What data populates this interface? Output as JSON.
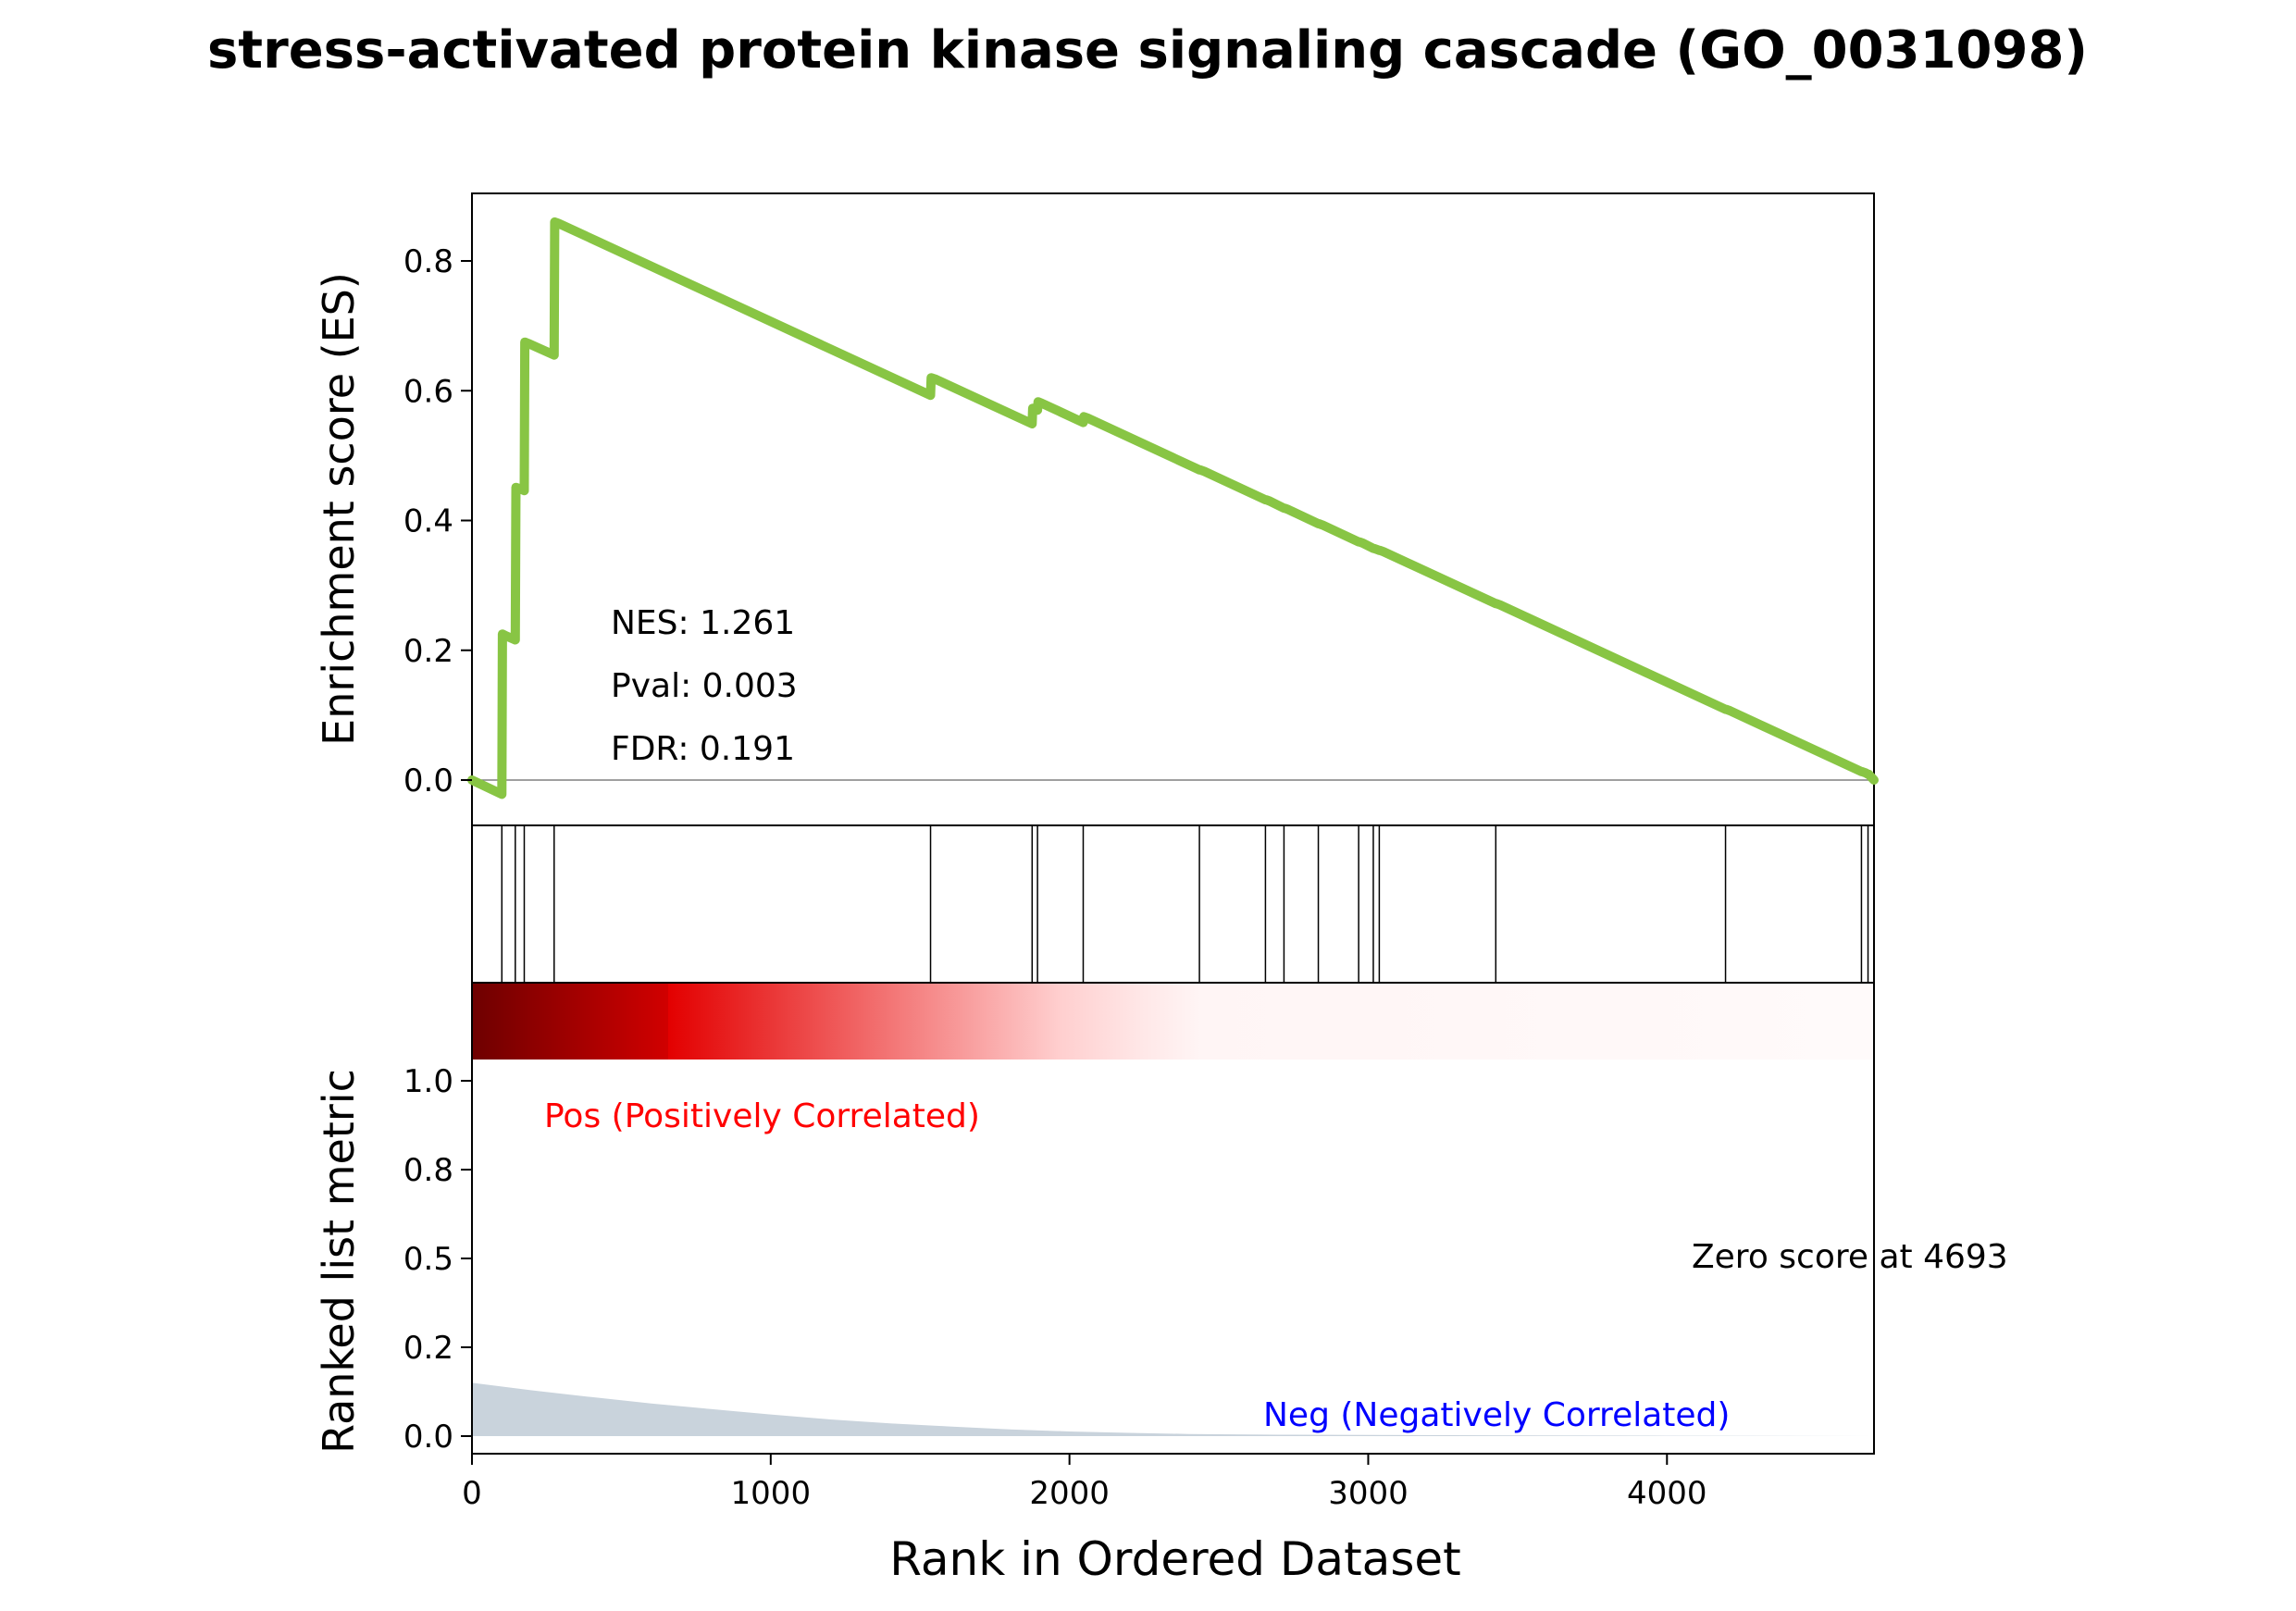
{
  "chart_data": {
    "type": "line",
    "title": "stress-activated protein kinase signaling cascade (GO_0031098)",
    "xlabel": "Rank in Ordered Dataset",
    "colors": {
      "es_line": "#88c544",
      "pos_label": "#ff0000",
      "neg_label": "#0000ff",
      "metric_fill": "#c9d3dc",
      "zero_line": "#808080"
    },
    "es_panel": {
      "ylabel": "Enrichment score (ES)",
      "xlim": [
        0,
        4693
      ],
      "ylim": [
        -0.07,
        0.9
      ],
      "yticks": [
        "0.0",
        "0.2",
        "0.4",
        "0.6",
        "0.8"
      ],
      "ytick_values": [
        0.0,
        0.2,
        0.4,
        0.6,
        0.8
      ],
      "stats": [
        "NES: 1.261",
        "Pval: 0.003",
        "FDR: 0.191"
      ],
      "series": [
        {
          "x": [
            0,
            100,
            102,
            115,
            145,
            147,
            160,
            175,
            177,
            188,
            275,
            277,
            289,
            1535,
            1537,
            1550,
            1875,
            1877,
            1890,
            1893,
            1895,
            1906,
            2046,
            2048,
            2060,
            2435,
            2437,
            2450,
            2656,
            2658,
            2670,
            2718,
            2720,
            2732,
            2833,
            2835,
            2847,
            2968,
            2970,
            2982,
            3017,
            3019,
            3031,
            3037,
            3039,
            3051,
            3427,
            3429,
            3441,
            4196,
            4198,
            4210,
            4651,
            4653,
            4665,
            4673,
            4675,
            4693
          ],
          "y": [
            0.0,
            -0.022,
            0.225,
            0.222,
            0.216,
            0.451,
            0.449,
            0.446,
            0.675,
            0.673,
            0.655,
            0.86,
            0.858,
            0.593,
            0.62,
            0.618,
            0.549,
            0.573,
            0.571,
            0.57,
            0.583,
            0.581,
            0.551,
            0.56,
            0.558,
            0.478,
            0.478,
            0.476,
            0.432,
            0.432,
            0.43,
            0.419,
            0.419,
            0.417,
            0.395,
            0.395,
            0.393,
            0.367,
            0.367,
            0.365,
            0.357,
            0.357,
            0.355,
            0.354,
            0.354,
            0.352,
            0.272,
            0.272,
            0.27,
            0.109,
            0.109,
            0.107,
            0.013,
            0.013,
            0.011,
            0.009,
            0.009,
            0.0
          ]
        }
      ]
    },
    "hits": [
      100,
      145,
      175,
      275,
      1535,
      1875,
      1893,
      2046,
      2435,
      2656,
      2718,
      2833,
      2968,
      3017,
      3037,
      3427,
      4196,
      4651,
      4673
    ],
    "metric_panel": {
      "ylabel": "Ranked list metric",
      "yticks": [
        "0.0",
        "0.2",
        "0.5",
        "0.8",
        "1.0"
      ],
      "pos_label": "Pos (Positively Correlated)",
      "neg_label": "Neg (Negatively Correlated)",
      "zero_label": "Zero score at 4693",
      "series": [
        {
          "x": [
            0,
            200,
            400,
            600,
            800,
            1000,
            1200,
            1400,
            1600,
            1800,
            2000,
            2200,
            2400,
            2700,
            3000,
            3500,
            4000,
            4693
          ],
          "y": [
            0.15,
            0.129,
            0.11,
            0.092,
            0.076,
            0.061,
            0.047,
            0.036,
            0.027,
            0.019,
            0.013,
            0.009,
            0.006,
            0.004,
            0.003,
            0.002,
            0.001,
            0.0
          ]
        }
      ]
    },
    "xticks": [
      "0",
      "1000",
      "2000",
      "3000",
      "4000"
    ],
    "xtick_values": [
      0,
      1000,
      2000,
      3000,
      4000
    ]
  }
}
